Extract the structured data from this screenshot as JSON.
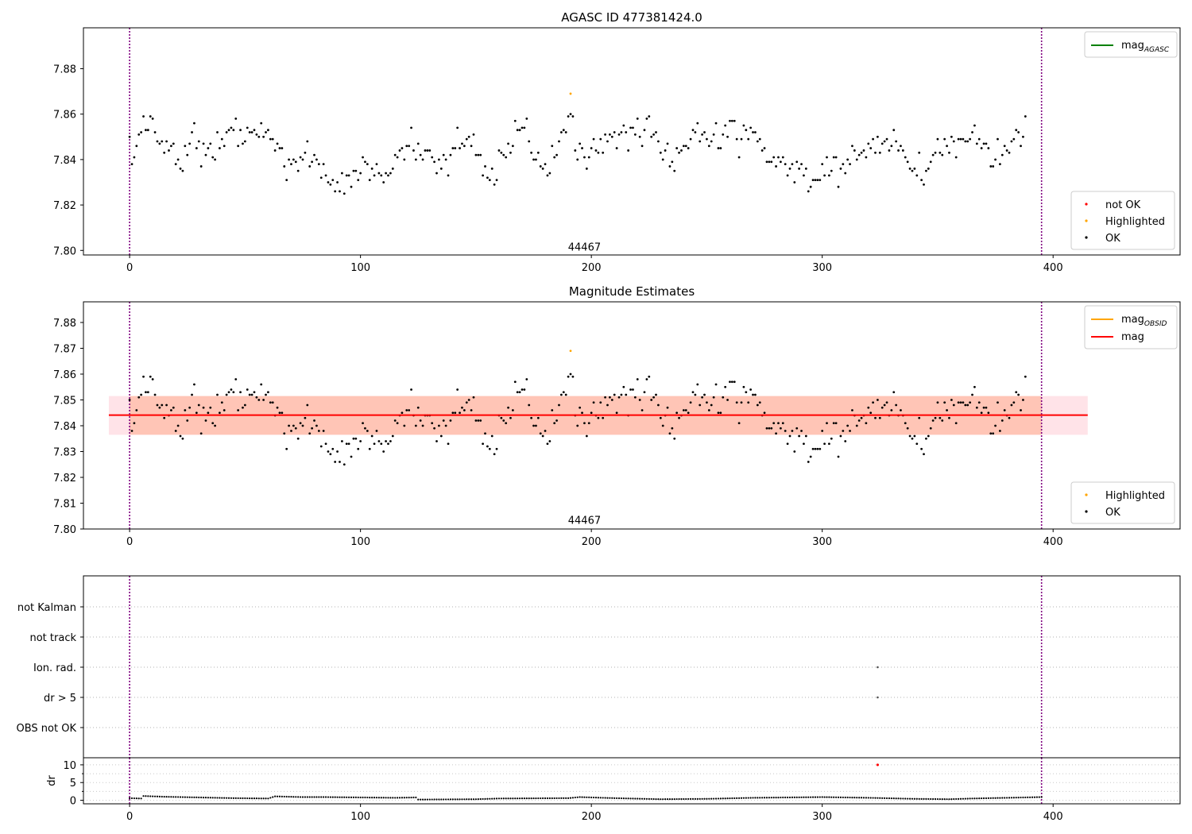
{
  "chart_data": [
    {
      "type": "scatter",
      "title": "AGASC ID 477381424.0",
      "xlim": [
        -20,
        455
      ],
      "ylim": [
        7.798,
        7.898
      ],
      "xticks": [
        0,
        100,
        200,
        300,
        400
      ],
      "yticks": [
        7.8,
        7.82,
        7.84,
        7.86,
        7.88
      ],
      "ytick_labels": [
        "7.80",
        "7.82",
        "7.84",
        "7.86",
        "7.88"
      ],
      "grid": false,
      "vlines": [
        0,
        395
      ],
      "annotation": {
        "text": "44467",
        "x": 197,
        "y": 7.8
      },
      "line_legend": {
        "placement": "top-right",
        "entries": [
          {
            "label_main": "mag",
            "label_sub": "AGASC",
            "color": "#008000"
          }
        ]
      },
      "point_legend": {
        "placement": "bottom-right",
        "entries": [
          {
            "label": "not OK",
            "color": "#ff0000"
          },
          {
            "label": "Highlighted",
            "color": "#ffa500"
          },
          {
            "label": "OK",
            "color": "#000000"
          }
        ]
      },
      "series": [
        {
          "name": "OK",
          "color": "#000000",
          "x_start": 0,
          "x_step": 1,
          "y": [
            7.85,
            7.838,
            7.841,
            7.846,
            7.851,
            7.852,
            7.859,
            7.853,
            7.853,
            7.859,
            7.858,
            7.852,
            7.848,
            7.847,
            7.848,
            7.843,
            7.848,
            7.844,
            7.846,
            7.847,
            7.838,
            7.84,
            7.836,
            7.835,
            7.846,
            7.842,
            7.847,
            7.852,
            7.856,
            7.845,
            7.848,
            7.837,
            7.847,
            7.842,
            7.845,
            7.847,
            7.841,
            7.84,
            7.852,
            7.845,
            7.849,
            7.846,
            7.852,
            7.853,
            7.854,
            7.853,
            7.858,
            7.846,
            7.853,
            7.847,
            7.848,
            7.854,
            7.852,
            7.852,
            7.853,
            7.851,
            7.85,
            7.856,
            7.85,
            7.852,
            7.853,
            7.849,
            7.849,
            7.844,
            7.847,
            7.845,
            7.845,
            7.837,
            7.831,
            7.84,
            7.838,
            7.84,
            7.839,
            7.835,
            7.841,
            7.84,
            7.843,
            7.848,
            7.837,
            7.839,
            7.842,
            7.84,
            7.838,
            7.832,
            7.838,
            7.833,
            7.83,
            7.829,
            7.831,
            7.826,
            7.83,
            7.826,
            7.834,
            7.825,
            7.833,
            7.833,
            7.828,
            7.835,
            7.835,
            7.831,
            7.834,
            7.841,
            7.839,
            7.838,
            7.831,
            7.836,
            7.833,
            7.838,
            7.834,
            7.833,
            7.83,
            7.834,
            7.833,
            7.834,
            7.836,
            7.842,
            7.841,
            7.844,
            7.845,
            7.84,
            7.846,
            7.846,
            7.854,
            7.844,
            7.84,
            7.847,
            7.842,
            7.84,
            7.844,
            7.844,
            7.844,
            7.841,
            7.839,
            7.834,
            7.84,
            7.836,
            7.842,
            7.84,
            7.833,
            7.842,
            7.845,
            7.845,
            7.854,
            7.845,
            7.847,
            7.846,
            7.849,
            7.85,
            7.846,
            7.851,
            7.842,
            7.842,
            7.842,
            7.833,
            7.837,
            7.832,
            7.831,
            7.836,
            7.829,
            7.831,
            7.844,
            7.843,
            7.842,
            7.841,
            7.847,
            7.843,
            7.846,
            7.857,
            7.853,
            7.853,
            7.854,
            7.854,
            7.858,
            7.848,
            7.843,
            7.84,
            7.84,
            7.843,
            7.837,
            7.836,
            7.838,
            7.833,
            7.834,
            7.846,
            7.841,
            7.842,
            7.848,
            7.852,
            7.853,
            7.852,
            7.859,
            7.86,
            7.859,
            7.844,
            7.84,
            7.847,
            7.845,
            7.841,
            7.836,
            7.841,
            7.845,
            7.849,
            7.844,
            7.843,
            7.849,
            7.843,
            7.851,
            7.848,
            7.851,
            7.85,
            7.852,
            7.845,
            7.851,
            7.852,
            7.855,
            7.852,
            7.844,
            7.854,
            7.854,
            7.851,
            7.858,
            7.85,
            7.846,
            7.853,
            7.858,
            7.859,
            7.85,
            7.851,
            7.852,
            7.848,
            7.843,
            7.84,
            7.844,
            7.847,
            7.837,
            7.839,
            7.835,
            7.845,
            7.843,
            7.844,
            7.846,
            7.846,
            7.845,
            7.849,
            7.853,
            7.852,
            7.856,
            7.848,
            7.851,
            7.852,
            7.849,
            7.846,
            7.848,
            7.851,
            7.856,
            7.845,
            7.845,
            7.851,
            7.855,
            7.85,
            7.857,
            7.857,
            7.857,
            7.849,
            7.841,
            7.849,
            7.855,
            7.853,
            7.849,
            7.854,
            7.852,
            7.852,
            7.848,
            7.849,
            7.844,
            7.845,
            7.839,
            7.839,
            7.839,
            7.841,
            7.837,
            7.841,
            7.839,
            7.841,
            7.838,
            7.833,
            7.836,
            7.838,
            7.83,
            7.839,
            7.836,
            7.838,
            7.833,
            7.836,
            7.826,
            7.828,
            7.831,
            7.831,
            7.831,
            7.831,
            7.838,
            7.833,
            7.841,
            7.833,
            7.835,
            7.841,
            7.841,
            7.828,
            7.836,
            7.838,
            7.834,
            7.84,
            7.838,
            7.846,
            7.844,
            7.84,
            7.842,
            7.843,
            7.844,
            7.841,
            7.847,
            7.845,
            7.849,
            7.843,
            7.85,
            7.843,
            7.847,
            7.848,
            7.849,
            7.844,
            7.846,
            7.853,
            7.848,
            7.844,
            7.846,
            7.844,
            7.841,
            7.839,
            7.836,
            7.835,
            7.836,
            7.833,
            7.843,
            7.831,
            7.829,
            7.835,
            7.836,
            7.839,
            7.842,
            7.843,
            7.849,
            7.843,
            7.842,
            7.849,
            7.846,
            7.843,
            7.85,
            7.848,
            7.841,
            7.849,
            7.849,
            7.849,
            7.848,
            7.848,
            7.849,
            7.852,
            7.855,
            7.847,
            7.849,
            7.845,
            7.847,
            7.847,
            7.845,
            7.837,
            7.837,
            7.84,
            7.849,
            7.838,
            7.842,
            7.846,
            7.844,
            7.843,
            7.848,
            7.849,
            7.853,
            7.852,
            7.846,
            7.85,
            7.859
          ]
        },
        {
          "name": "Highlighted",
          "color": "#ffa500",
          "x": [
            191
          ],
          "y": [
            7.869
          ]
        }
      ]
    },
    {
      "type": "scatter",
      "title": "Magnitude Estimates",
      "xlim": [
        -20,
        455
      ],
      "ylim": [
        7.8,
        7.888
      ],
      "xticks": [
        0,
        100,
        200,
        300,
        400
      ],
      "yticks": [
        7.8,
        7.81,
        7.82,
        7.83,
        7.84,
        7.85,
        7.86,
        7.87,
        7.88
      ],
      "ytick_labels": [
        "7.80",
        "7.81",
        "7.82",
        "7.83",
        "7.84",
        "7.85",
        "7.86",
        "7.87",
        "7.88"
      ],
      "grid": false,
      "vlines": [
        0,
        395
      ],
      "annotation": {
        "text": "44467",
        "x": 197,
        "y": 7.802
      },
      "bands": [
        {
          "x0": -9,
          "x1": 415,
          "y0": 7.8365,
          "y1": 7.8515,
          "color": "#ffc0cb"
        },
        {
          "x0": 0,
          "x1": 395,
          "y0": 7.8365,
          "y1": 7.8515,
          "color": "#ffa07a"
        }
      ],
      "hlines": [
        {
          "y": 7.8441,
          "x0": -9,
          "x1": 415,
          "color": "#ff0000"
        }
      ],
      "line_legend": {
        "placement": "top-right",
        "entries": [
          {
            "label_main": "mag",
            "label_sub": "OBSID",
            "color": "#ffa500"
          },
          {
            "label_main": "mag",
            "label_sub": "",
            "color": "#ff0000"
          }
        ]
      },
      "point_legend": {
        "placement": "bottom-right",
        "entries": [
          {
            "label": "Highlighted",
            "color": "#ffa500"
          },
          {
            "label": "OK",
            "color": "#000000"
          }
        ]
      },
      "series_from": 0
    },
    {
      "type": "scatter",
      "xlim": [
        -20,
        455
      ],
      "categories": [
        "not Kalman",
        "not track",
        "Ion. rad.",
        "dr > 5",
        "OBS not OK"
      ],
      "grid": true,
      "vlines": [
        0,
        395
      ],
      "points": [
        {
          "x": 324,
          "category": "Ion. rad."
        },
        {
          "x": 324,
          "category": "dr > 5"
        }
      ]
    },
    {
      "type": "scatter",
      "ylabel": "dr",
      "xlim": [
        -20,
        455
      ],
      "ylim": [
        -1,
        12
      ],
      "xticks": [
        0,
        100,
        200,
        300,
        400
      ],
      "yticks": [
        0,
        5,
        10
      ],
      "ytick_labels": [
        "0",
        "5",
        "10"
      ],
      "grid": true,
      "vlines": [
        0,
        395
      ],
      "dr_profile": [
        [
          0,
          0.6
        ],
        [
          5,
          0.5
        ],
        [
          6,
          1.2
        ],
        [
          15,
          1.0
        ],
        [
          30,
          0.8
        ],
        [
          45,
          0.6
        ],
        [
          60,
          0.5
        ],
        [
          63,
          1.1
        ],
        [
          75,
          0.9
        ],
        [
          85,
          0.9
        ],
        [
          100,
          0.8
        ],
        [
          115,
          0.7
        ],
        [
          124,
          0.8
        ],
        [
          125,
          0.2
        ],
        [
          150,
          0.3
        ],
        [
          160,
          0.5
        ],
        [
          190,
          0.6
        ],
        [
          195,
          0.9
        ],
        [
          210,
          0.6
        ],
        [
          230,
          0.3
        ],
        [
          250,
          0.4
        ],
        [
          270,
          0.7
        ],
        [
          300,
          0.9
        ],
        [
          320,
          0.7
        ],
        [
          340,
          0.4
        ],
        [
          355,
          0.3
        ],
        [
          365,
          0.5
        ],
        [
          380,
          0.7
        ],
        [
          395,
          0.9
        ]
      ],
      "flagged": [
        {
          "x": 324,
          "y": 10,
          "color": "#ff0000"
        }
      ]
    }
  ]
}
